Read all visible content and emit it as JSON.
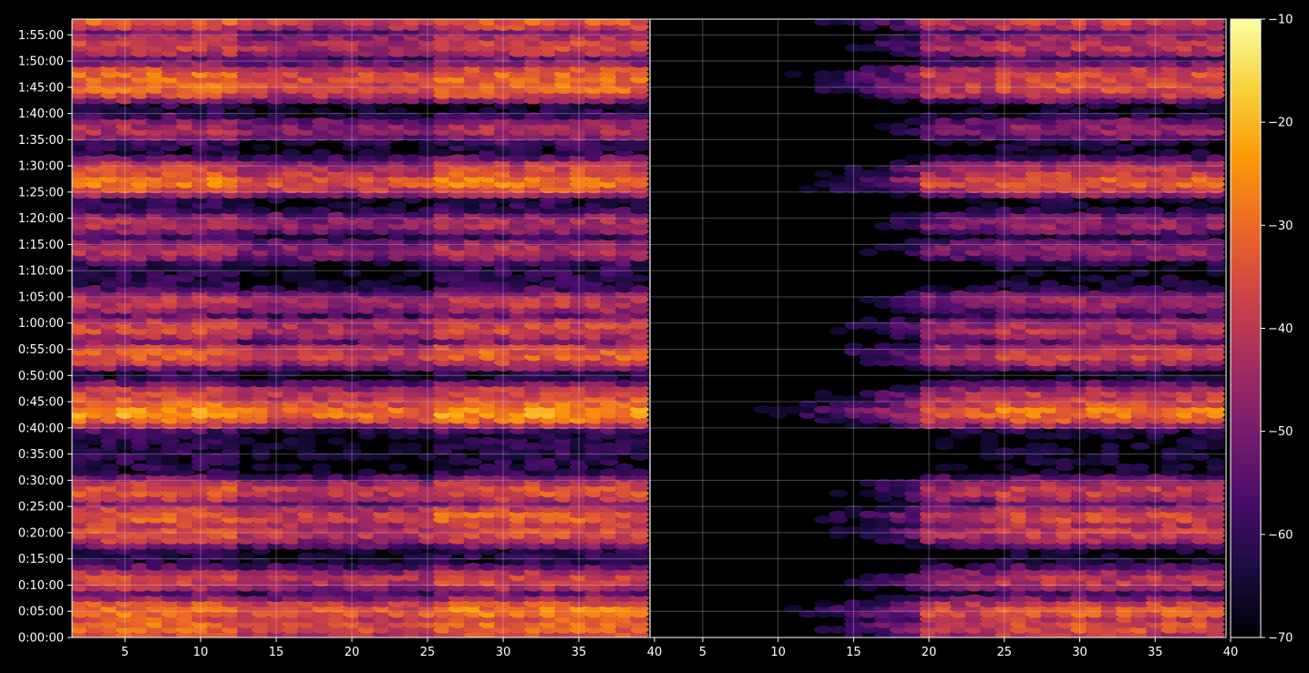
{
  "chart_data": {
    "type": "heatmap",
    "title": "",
    "xlabel": "",
    "ylabel": "",
    "background": "#000000",
    "grid": true,
    "colormap": "inferno",
    "colorbar": {
      "range": [
        -70,
        -10
      ],
      "ticks": [
        -10,
        -20,
        -30,
        -40,
        -50,
        -60,
        -70
      ],
      "tick_labels": [
        "−10",
        "−20",
        "−30",
        "−40",
        "−50",
        "−60",
        "−70"
      ],
      "colors": [
        "#000004",
        "#1b0c41",
        "#4a0c6b",
        "#781c6d",
        "#a52c60",
        "#cf4446",
        "#ed6925",
        "#fb9b06",
        "#f7d13d",
        "#fcffa4"
      ]
    },
    "panels": [
      {
        "name": "left",
        "x_range": [
          1.5,
          39.7
        ],
        "x_ticks": [
          5,
          10,
          15,
          20,
          25,
          30,
          35,
          40
        ],
        "x_tick_labels": [
          "5",
          "10",
          "15",
          "20",
          "25",
          "30",
          "35",
          "40"
        ],
        "intensity_base": 1.0
      },
      {
        "name": "right",
        "x_range": [
          1.5,
          39.7
        ],
        "x_ticks": [
          5,
          10,
          15,
          20,
          25,
          30,
          35,
          40
        ],
        "x_tick_labels": [
          "5",
          "10",
          "15",
          "20",
          "25",
          "30",
          "35",
          "40"
        ],
        "intensity_base": 0.55
      }
    ],
    "y_axis": {
      "range_seconds": [
        0,
        7080
      ],
      "ticks": [
        "0:00:00",
        "0:05:00",
        "0:10:00",
        "0:15:00",
        "0:20:00",
        "0:25:00",
        "0:30:00",
        "0:35:00",
        "0:40:00",
        "0:45:00",
        "0:50:00",
        "0:55:00",
        "1:00:00",
        "1:05:00",
        "1:10:00",
        "1:15:00",
        "1:20:00",
        "1:25:00",
        "1:30:00",
        "1:35:00",
        "1:40:00",
        "1:45:00",
        "1:50:00",
        "1:55:00"
      ]
    },
    "bright_bands": [
      {
        "time": "0:02:00",
        "value": -30
      },
      {
        "time": "0:05:00",
        "value": -28
      },
      {
        "time": "0:11:00",
        "value": -36
      },
      {
        "time": "0:20:00",
        "value": -34
      },
      {
        "time": "0:23:00",
        "value": -32
      },
      {
        "time": "0:28:00",
        "value": -34
      },
      {
        "time": "0:43:00",
        "value": -24
      },
      {
        "time": "0:46:00",
        "value": -34
      },
      {
        "time": "0:54:00",
        "value": -32
      },
      {
        "time": "0:59:00",
        "value": -36
      },
      {
        "time": "1:04:00",
        "value": -40
      },
      {
        "time": "1:14:00",
        "value": -42
      },
      {
        "time": "1:19:00",
        "value": -42
      },
      {
        "time": "1:27:00",
        "value": -28
      },
      {
        "time": "1:29:00",
        "value": -36
      },
      {
        "time": "1:37:00",
        "value": -42
      },
      {
        "time": "1:45:00",
        "value": -30
      },
      {
        "time": "1:47:00",
        "value": -30
      },
      {
        "time": "1:53:00",
        "value": -36
      },
      {
        "time": "1:58:00",
        "value": -32
      }
    ]
  }
}
